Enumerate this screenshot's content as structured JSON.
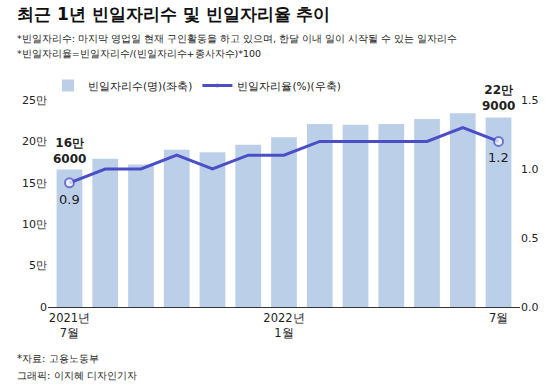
{
  "chart_data": {
    "type": "bar",
    "title": "최근 1년 빈일자리수 및 빈일자리율 추이",
    "notes": [
      "*빈일자리수: 마지막 영업일 현재 구인활동을 하고 있으며, 한달 이내 일이 시작될 수 있는 일자리수",
      "*빈일자리율=빈일자리수/(빈일자리수+종사자수)*100"
    ],
    "footer": [
      "*자료: 고용노동부",
      "그래픽: 이지혜 디자인기자"
    ],
    "categories": [
      "2021년\n7월",
      null,
      null,
      null,
      null,
      null,
      "2022년\n1월",
      null,
      null,
      null,
      null,
      null,
      "7월"
    ],
    "series": [
      {
        "name": "빈일자리수(명)(좌축)",
        "type": "bar",
        "color": "#bccfe9",
        "values": [
          166000,
          179000,
          172000,
          190000,
          187000,
          196000,
          205000,
          221000,
          220000,
          221000,
          227000,
          234000,
          229000
        ]
      },
      {
        "name": "빈일자리율(%)(우축)",
        "type": "line",
        "axis": "y2",
        "color": "#4b4fc6",
        "marker": "endpoints",
        "values": [
          0.9,
          1.0,
          1.0,
          1.1,
          1.0,
          1.1,
          1.1,
          1.2,
          1.2,
          1.2,
          1.2,
          1.3,
          1.2
        ]
      }
    ],
    "ylim": [
      0,
      250000
    ],
    "yticks": [
      0,
      {
        "value": 50000,
        "label": "5만"
      },
      {
        "value": 100000,
        "label": "10만"
      },
      {
        "value": 150000,
        "label": "15만"
      },
      {
        "value": 200000,
        "label": "20만"
      },
      {
        "value": 250000,
        "label": "25만"
      }
    ],
    "y2lim": [
      0,
      1.5
    ],
    "y2ticks": [
      {
        "value": 0,
        "label": "0.0"
      },
      {
        "value": 0.5,
        "label": "0.5"
      },
      {
        "value": 1.0,
        "label": "1.0"
      },
      {
        "value": 1.5,
        "label": "1.5"
      }
    ],
    "annotations": [
      {
        "text": "16만\n6000",
        "x": 0,
        "y": 166000,
        "axis": "y"
      },
      {
        "text": "22만\n9000",
        "x": 12,
        "y": 229000,
        "axis": "y"
      },
      {
        "text": "0.9",
        "x": 0,
        "y": 0.9,
        "axis": "y2"
      },
      {
        "text": "1.2",
        "x": 12,
        "y": 1.2,
        "axis": "y2"
      }
    ],
    "grid": false,
    "legend": "top left"
  }
}
